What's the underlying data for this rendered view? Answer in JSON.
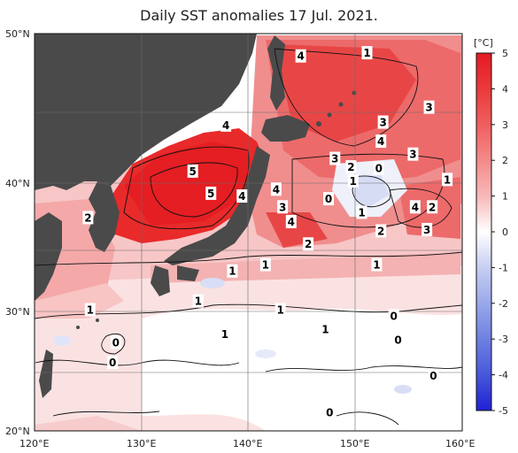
{
  "title": "Daily SST anomalies 17 Jul. 2021.",
  "colorbar": {
    "unit": "[°C]",
    "ticks": [
      "5",
      "4",
      "3",
      "2",
      "1",
      "0",
      "-1",
      "-2",
      "-3",
      "-4",
      "-5"
    ],
    "colors": {
      "max_warm": "#e8202a",
      "warm": "#f08080",
      "mild_warm": "#f8c8c8",
      "neutral": "#ffffff",
      "mild_cool": "#c8d0f0",
      "cool": "#6a7de0",
      "max_cool": "#2020d8",
      "land": "#4a4a4a"
    }
  },
  "axes": {
    "lat_labels": [
      "50°N",
      "40°N",
      "30°N",
      "20°N"
    ],
    "lon_labels": [
      "120°E",
      "130°E",
      "140°E",
      "150°E",
      "160°E"
    ]
  },
  "contour_labels": [
    {
      "text": "4",
      "lon": 144.9,
      "lat": 48.6
    },
    {
      "text": "1",
      "lon": 151.1,
      "lat": 48.8
    },
    {
      "text": "3",
      "lon": 156.9,
      "lat": 45.3
    },
    {
      "text": "4",
      "lon": 137.9,
      "lat": 44.1
    },
    {
      "text": "3",
      "lon": 152.6,
      "lat": 44.3
    },
    {
      "text": "4",
      "lon": 152.4,
      "lat": 43.0
    },
    {
      "text": "3",
      "lon": 148.1,
      "lat": 41.8
    },
    {
      "text": "3",
      "lon": 155.4,
      "lat": 42.1
    },
    {
      "text": "2",
      "lon": 149.6,
      "lat": 41.2
    },
    {
      "text": "0",
      "lon": 152.2,
      "lat": 41.1
    },
    {
      "text": "5",
      "lon": 134.8,
      "lat": 40.9
    },
    {
      "text": "1",
      "lon": 149.8,
      "lat": 40.2
    },
    {
      "text": "1",
      "lon": 158.6,
      "lat": 40.3
    },
    {
      "text": "4",
      "lon": 142.6,
      "lat": 39.6
    },
    {
      "text": "5",
      "lon": 136.5,
      "lat": 39.3
    },
    {
      "text": "4",
      "lon": 139.4,
      "lat": 39.1
    },
    {
      "text": "0",
      "lon": 147.5,
      "lat": 38.9
    },
    {
      "text": "3",
      "lon": 143.2,
      "lat": 38.3
    },
    {
      "text": "4",
      "lon": 155.6,
      "lat": 38.3
    },
    {
      "text": "2",
      "lon": 157.2,
      "lat": 38.3
    },
    {
      "text": "1",
      "lon": 150.6,
      "lat": 37.9
    },
    {
      "text": "2",
      "lon": 125.0,
      "lat": 37.5
    },
    {
      "text": "4",
      "lon": 144.0,
      "lat": 37.2
    },
    {
      "text": "2",
      "lon": 152.4,
      "lat": 36.5
    },
    {
      "text": "3",
      "lon": 156.7,
      "lat": 36.6
    },
    {
      "text": "2",
      "lon": 145.6,
      "lat": 35.5
    },
    {
      "text": "1",
      "lon": 141.6,
      "lat": 33.9
    },
    {
      "text": "1",
      "lon": 138.5,
      "lat": 33.4
    },
    {
      "text": "1",
      "lon": 152.0,
      "lat": 33.9
    },
    {
      "text": "1",
      "lon": 135.3,
      "lat": 31.0
    },
    {
      "text": "1",
      "lon": 125.2,
      "lat": 30.3
    },
    {
      "text": "1",
      "lon": 143.0,
      "lat": 30.3
    },
    {
      "text": "0",
      "lon": 153.6,
      "lat": 29.8
    },
    {
      "text": "1",
      "lon": 137.8,
      "lat": 28.3
    },
    {
      "text": "1",
      "lon": 147.2,
      "lat": 28.7
    },
    {
      "text": "0",
      "lon": 127.6,
      "lat": 27.6
    },
    {
      "text": "0",
      "lon": 154.0,
      "lat": 27.8
    },
    {
      "text": "0",
      "lon": 127.3,
      "lat": 25.9
    },
    {
      "text": "0",
      "lon": 157.3,
      "lat": 24.8
    },
    {
      "text": "0",
      "lon": 147.6,
      "lat": 21.6
    }
  ]
}
